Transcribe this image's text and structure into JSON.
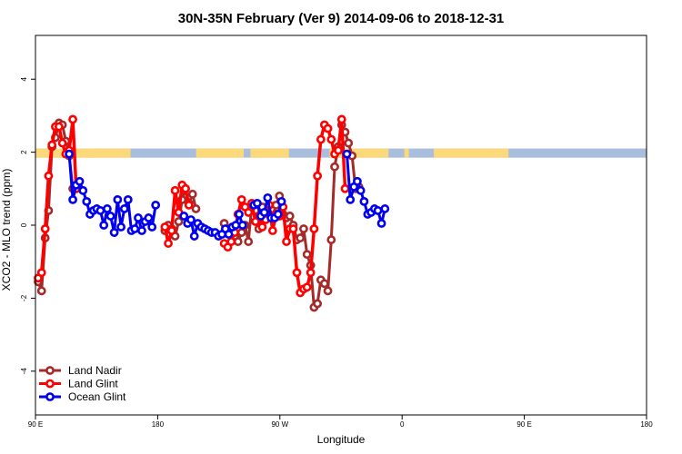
{
  "chart_data": {
    "type": "line",
    "title": "30N-35N February (Ver 9)   2014-09-06 to 2018-12-31",
    "xlabel": "Longitude",
    "ylabel": "XCO2 - MLO trend (ppm)",
    "xlim": [
      -90,
      180
    ],
    "ylim": [
      -5.2,
      5.2
    ],
    "x_ticks": [
      -90,
      -36,
      18,
      72,
      126,
      180
    ],
    "x_tick_labels": [
      "90 E",
      "180",
      "90 W",
      "0",
      "90 E",
      "180"
    ],
    "y_ticks": [
      -4,
      -2,
      0,
      2,
      4
    ],
    "y_tick_labels": [
      "-4",
      "-2",
      "0",
      "2",
      "4"
    ],
    "grid": false,
    "legend_position": "bottom-left",
    "band": {
      "y_range": [
        1.85,
        2.1
      ],
      "ocean_color": "#a9bedc",
      "land_color": "#fbd97a",
      "land_segments": [
        [
          -90,
          -48
        ],
        [
          -80,
          -78
        ],
        [
          -67,
          -64
        ],
        [
          -19,
          2
        ],
        [
          5,
          22
        ],
        [
          40,
          66
        ],
        [
          73,
          75
        ],
        [
          86,
          119
        ]
      ]
    },
    "series": [
      {
        "name": "Land Nadir",
        "color": "#a52a2a",
        "points": [
          [
            -88.8,
            -1.55
          ],
          [
            -87.3,
            -1.8
          ],
          [
            -85.7,
            -0.35
          ],
          [
            -84.2,
            0.4
          ],
          [
            -82.7,
            2.15
          ],
          [
            -81.2,
            2.4
          ],
          [
            -79.6,
            2.8
          ],
          [
            -78.1,
            2.75
          ],
          [
            -76.6,
            2.3
          ],
          [
            -75.1,
            1.9
          ],
          [
            -73.5,
            1.0
          ],
          [
            -72.0,
            1.05
          ],
          [
            -32.8,
            -0.15
          ],
          [
            -31.3,
            0.0
          ],
          [
            -29.8,
            -0.1
          ],
          [
            -28.3,
            -0.3
          ],
          [
            -26.7,
            0.1
          ],
          [
            -25.2,
            0.7
          ],
          [
            -23.7,
            1.0
          ],
          [
            -22.2,
            0.6
          ],
          [
            -20.6,
            0.85
          ],
          [
            -19.1,
            0.45
          ],
          [
            -6.6,
            0.05
          ],
          [
            -5.0,
            -0.1
          ],
          [
            -3.5,
            -0.25
          ],
          [
            -2.0,
            -0.3
          ],
          [
            -0.5,
            -0.45
          ],
          [
            1.1,
            -0.2
          ],
          [
            2.6,
            0.0
          ],
          [
            4.1,
            -0.45
          ],
          [
            5.6,
            0.55
          ],
          [
            7.2,
            0.4
          ],
          [
            8.7,
            -0.1
          ],
          [
            10.2,
            0.5
          ],
          [
            11.7,
            0.15
          ],
          [
            13.3,
            0.3
          ],
          [
            14.8,
            0.25
          ],
          [
            16.3,
            0.55
          ],
          [
            17.8,
            0.8
          ],
          [
            19.4,
            0.3
          ],
          [
            20.9,
            0.2
          ],
          [
            22.4,
            0.25
          ],
          [
            23.9,
            0.0
          ],
          [
            25.5,
            -0.4
          ],
          [
            27.0,
            -0.35
          ],
          [
            28.5,
            -0.1
          ],
          [
            30.0,
            -0.8
          ],
          [
            31.6,
            -1.1
          ],
          [
            33.1,
            -2.25
          ],
          [
            34.6,
            -2.15
          ],
          [
            36.1,
            -1.5
          ],
          [
            37.7,
            -1.6
          ],
          [
            39.2,
            -1.8
          ],
          [
            40.7,
            -0.4
          ],
          [
            42.2,
            1.6
          ],
          [
            43.8,
            2.15
          ],
          [
            45.3,
            2.75
          ],
          [
            46.8,
            2.55
          ],
          [
            48.3,
            2.25
          ],
          [
            49.9,
            1.9
          ],
          [
            51.4,
            1.0
          ],
          [
            52.9,
            1.05
          ]
        ]
      },
      {
        "name": "Land Glint",
        "color": "#ff0000",
        "points": [
          [
            -88.8,
            -1.45
          ],
          [
            -87.3,
            -1.3
          ],
          [
            -85.7,
            -0.1
          ],
          [
            -84.2,
            1.35
          ],
          [
            -82.7,
            2.2
          ],
          [
            -81.2,
            2.7
          ],
          [
            -79.6,
            2.7
          ],
          [
            -78.1,
            2.25
          ],
          [
            -76.6,
            1.95
          ],
          [
            -75.1,
            2.05
          ],
          [
            -73.5,
            2.9
          ],
          [
            -72.0,
            1.0
          ],
          [
            -32.8,
            -0.05
          ],
          [
            -31.3,
            -0.5
          ],
          [
            -29.8,
            -0.15
          ],
          [
            -28.3,
            0.95
          ],
          [
            -26.7,
            0.35
          ],
          [
            -25.2,
            1.1
          ],
          [
            -23.7,
            1.0
          ],
          [
            -22.2,
            0.55
          ],
          [
            -6.6,
            -0.5
          ],
          [
            -5.0,
            -0.6
          ],
          [
            -3.5,
            -0.45
          ],
          [
            -2.0,
            -0.2
          ],
          [
            -0.5,
            0.3
          ],
          [
            1.1,
            0.7
          ],
          [
            2.6,
            0.5
          ],
          [
            4.1,
            0.35
          ],
          [
            5.6,
            0.6
          ],
          [
            7.2,
            0.1
          ],
          [
            8.7,
            0.25
          ],
          [
            10.2,
            -0.05
          ],
          [
            11.7,
            0.15
          ],
          [
            13.3,
            0.55
          ],
          [
            14.8,
            -0.15
          ],
          [
            16.3,
            0.3
          ],
          [
            17.8,
            0.25
          ],
          [
            19.4,
            0.5
          ],
          [
            20.9,
            -0.45
          ],
          [
            22.4,
            -0.1
          ],
          [
            23.9,
            -0.1
          ],
          [
            25.5,
            -1.3
          ],
          [
            27.0,
            -1.85
          ],
          [
            28.5,
            -1.75
          ],
          [
            30.0,
            -1.7
          ],
          [
            31.6,
            -1.3
          ],
          [
            33.1,
            -0.1
          ],
          [
            34.6,
            1.35
          ],
          [
            36.1,
            2.35
          ],
          [
            37.7,
            2.75
          ],
          [
            39.2,
            2.65
          ],
          [
            40.7,
            2.35
          ],
          [
            42.2,
            1.95
          ],
          [
            43.8,
            2.05
          ],
          [
            45.3,
            2.9
          ],
          [
            46.8,
            1.0
          ]
        ]
      },
      {
        "name": "Ocean Glint",
        "color": "#0000ee",
        "points": [
          [
            -75.1,
            1.95
          ],
          [
            -73.5,
            0.7
          ],
          [
            -72.0,
            1.1
          ],
          [
            -70.5,
            1.2
          ],
          [
            -69.0,
            0.95
          ],
          [
            -67.4,
            0.65
          ],
          [
            -65.9,
            0.3
          ],
          [
            -64.4,
            0.4
          ],
          [
            -62.9,
            0.45
          ],
          [
            -61.3,
            0.4
          ],
          [
            -59.8,
            0.0
          ],
          [
            -58.3,
            0.45
          ],
          [
            -56.8,
            0.25
          ],
          [
            -55.2,
            -0.2
          ],
          [
            -53.7,
            0.7
          ],
          [
            -52.2,
            -0.05
          ],
          [
            -50.7,
            0.45
          ],
          [
            -49.1,
            0.7
          ],
          [
            -47.6,
            -0.15
          ],
          [
            -46.1,
            -0.1
          ],
          [
            -44.6,
            0.2
          ],
          [
            -43.0,
            -0.15
          ],
          [
            -41.5,
            0.1
          ],
          [
            -40.0,
            0.2
          ],
          [
            -38.5,
            -0.05
          ],
          [
            -36.9,
            0.55
          ],
          [
            -24.4,
            0.25
          ],
          [
            -22.8,
            0.05
          ],
          [
            -21.3,
            0.15
          ],
          [
            -19.8,
            -0.3
          ],
          [
            -18.3,
            0.05
          ],
          [
            -16.7,
            -0.05
          ],
          [
            -15.2,
            -0.1
          ],
          [
            -13.7,
            -0.15
          ],
          [
            -12.2,
            -0.2
          ],
          [
            -10.6,
            -0.2
          ],
          [
            -9.1,
            -0.3
          ],
          [
            -7.6,
            -0.25
          ],
          [
            -6.1,
            -0.1
          ],
          [
            -4.6,
            -0.25
          ],
          [
            -3.0,
            -0.05
          ],
          [
            -1.5,
            0.0
          ],
          [
            0.0,
            0.3
          ],
          [
            1.5,
            0.0
          ],
          [
            6.5,
            0.55
          ],
          [
            8.0,
            0.6
          ],
          [
            9.6,
            0.25
          ],
          [
            11.1,
            0.35
          ],
          [
            12.6,
            0.75
          ],
          [
            14.1,
            0.2
          ],
          [
            15.7,
            0.2
          ],
          [
            17.2,
            0.3
          ],
          [
            18.7,
            0.65
          ],
          [
            47.6,
            1.95
          ],
          [
            49.1,
            0.7
          ],
          [
            50.7,
            1.05
          ],
          [
            52.2,
            1.2
          ],
          [
            53.7,
            0.95
          ],
          [
            55.2,
            0.65
          ],
          [
            56.8,
            0.3
          ],
          [
            58.3,
            0.35
          ],
          [
            59.8,
            0.45
          ],
          [
            61.3,
            0.4
          ],
          [
            62.9,
            0.05
          ],
          [
            64.4,
            0.45
          ]
        ]
      }
    ]
  }
}
